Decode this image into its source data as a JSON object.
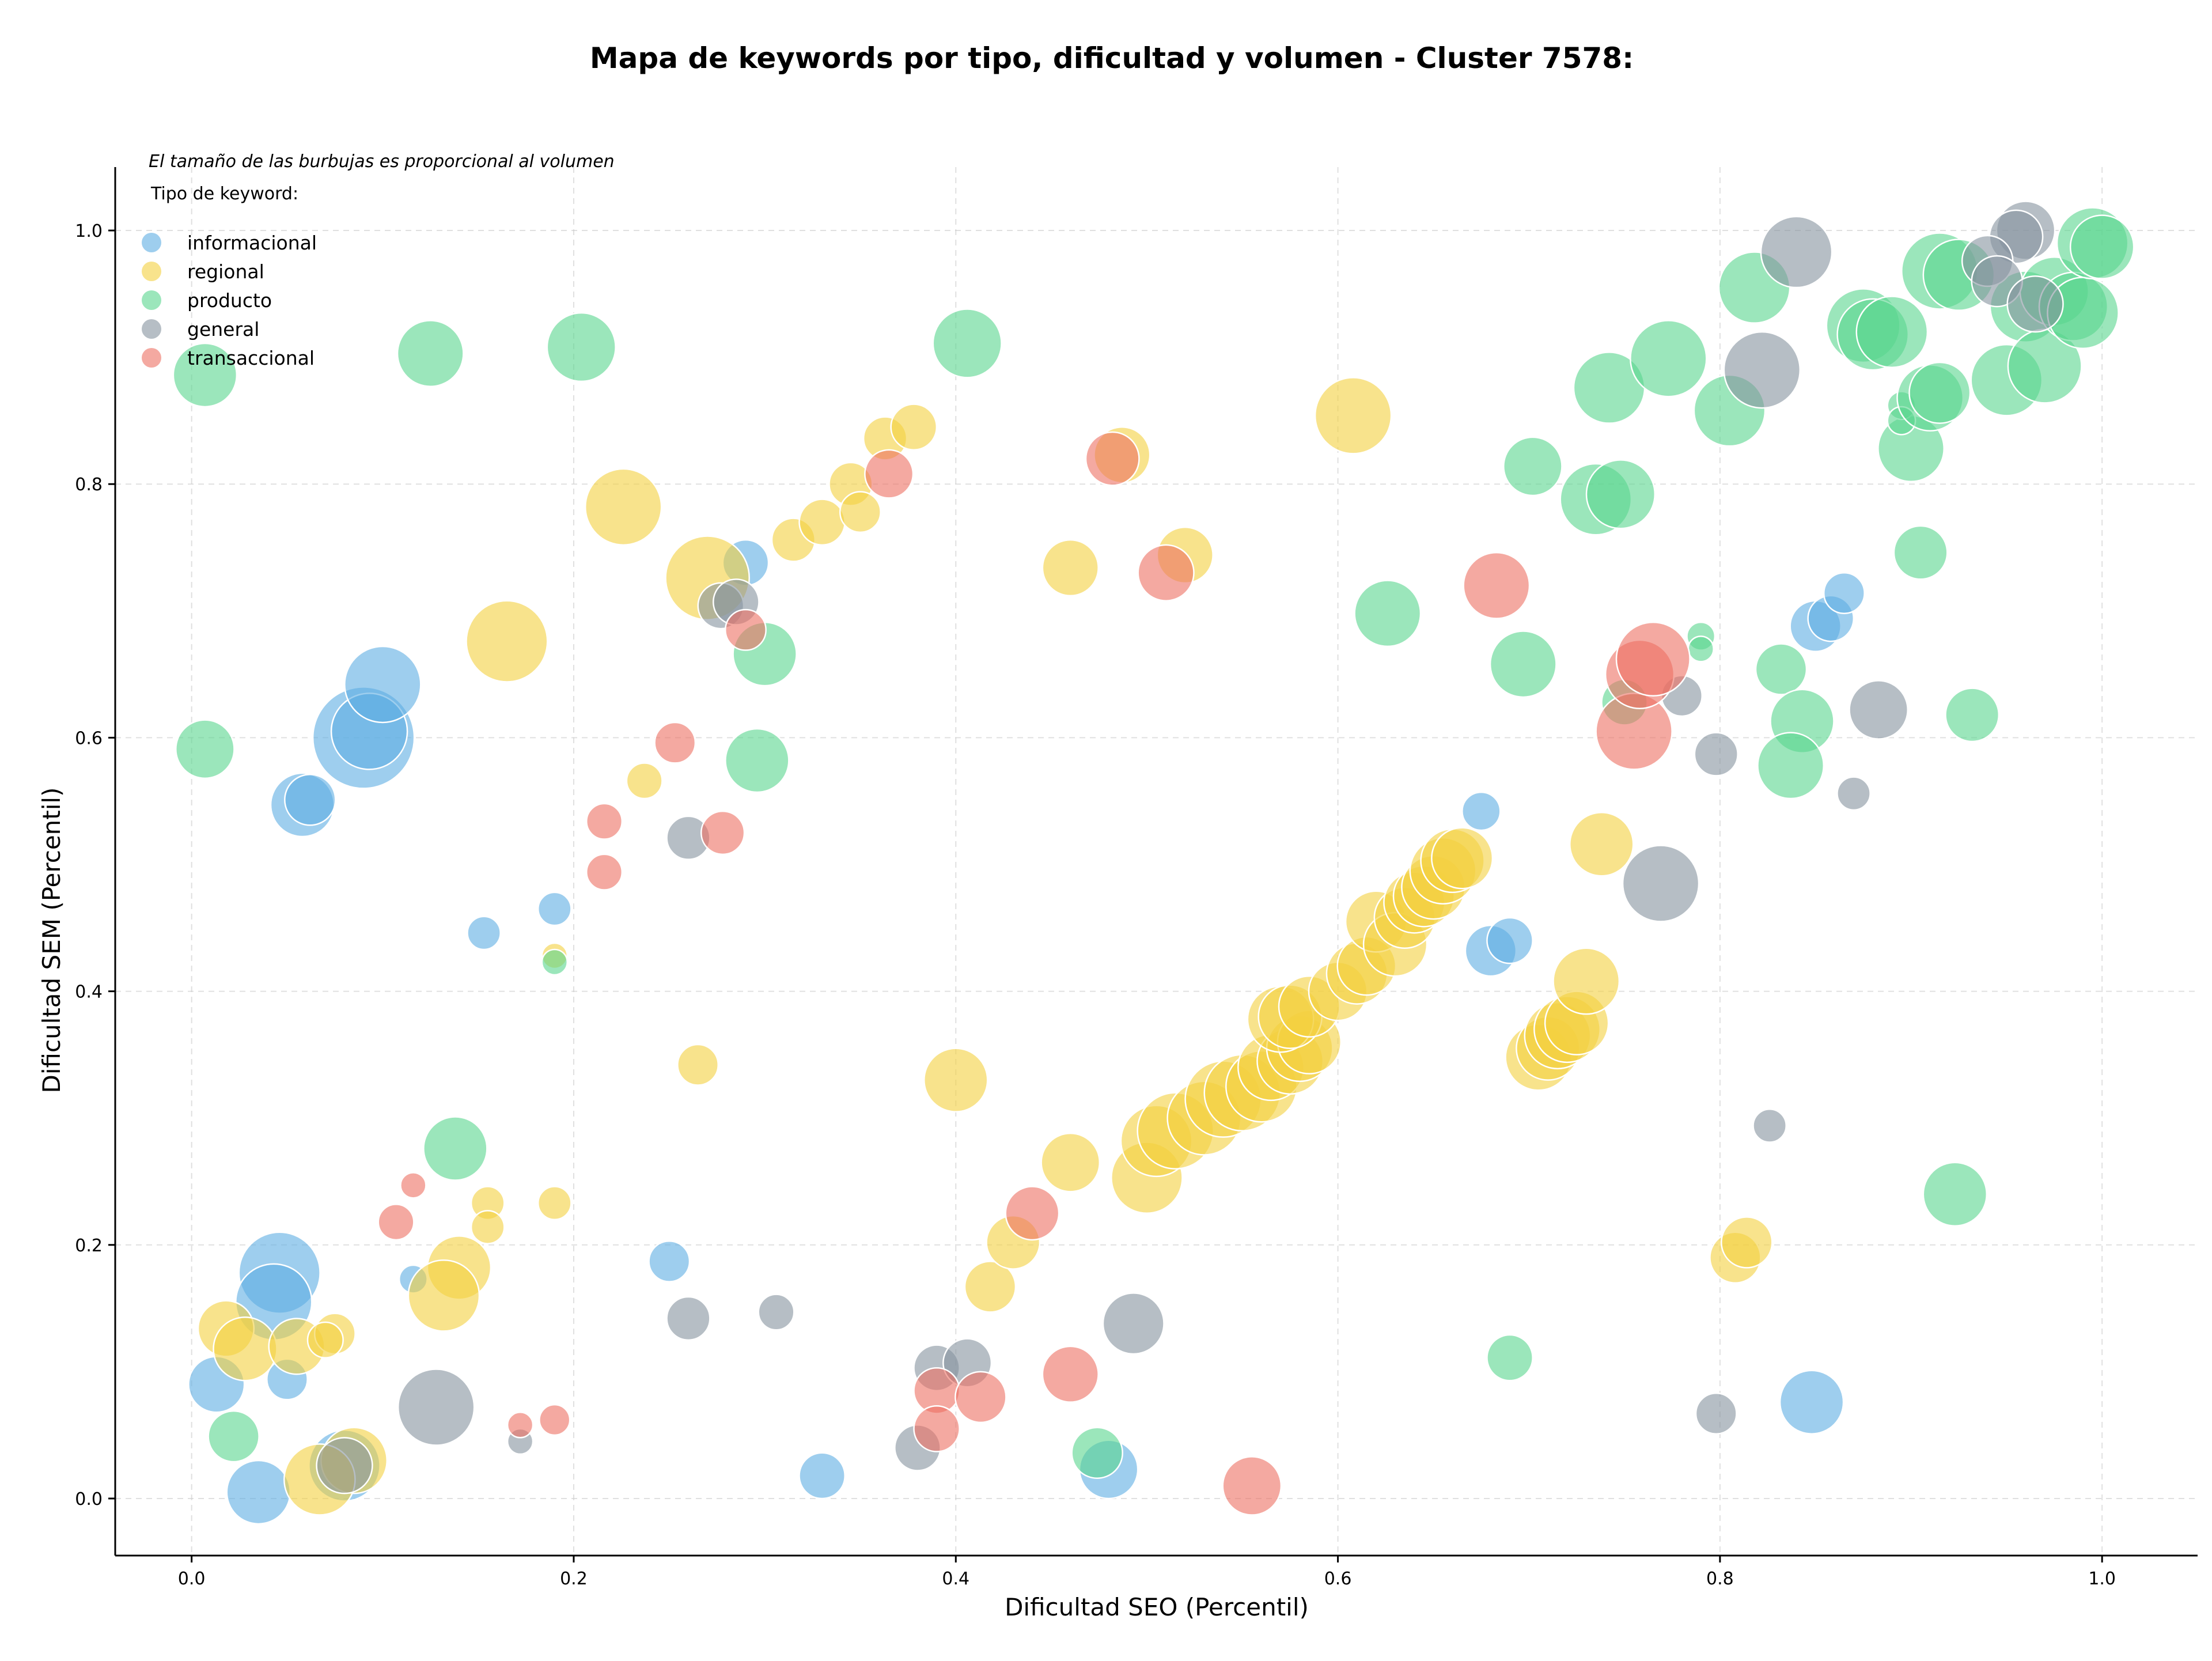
{
  "chart_data": {
    "type": "scatter",
    "title": "Mapa de keywords por tipo, dificultad y volumen - Cluster 7578:",
    "xlabel": "Dificultad SEO (Percentil)",
    "ylabel": "Dificultad SEM (Percentil)",
    "xlim": [
      -0.04,
      1.05
    ],
    "ylim": [
      -0.045,
      1.05
    ],
    "xticks": [
      "0.0",
      "0.2",
      "0.4",
      "0.6",
      "0.8",
      "1.0"
    ],
    "yticks": [
      "0.0",
      "0.2",
      "0.4",
      "0.6",
      "0.8",
      "1.0"
    ],
    "grid": true,
    "annotation": "El tamaño de las burbujas es proporcional al volumen",
    "legend": {
      "title": "Tipo de keyword:",
      "placement": "top-left"
    },
    "series": [
      {
        "name": "informacional",
        "color": "#5DADE2",
        "points": [
          [
            0.09,
            0.6,
            4
          ],
          [
            0.093,
            0.605,
            3
          ],
          [
            0.1,
            0.642,
            3
          ],
          [
            0.058,
            0.547,
            2.5
          ],
          [
            0.062,
            0.551,
            2
          ],
          [
            0.153,
            0.446,
            1.3
          ],
          [
            0.19,
            0.465,
            1.3
          ],
          [
            0.29,
            0.738,
            1.8
          ],
          [
            0.046,
            0.178,
            3.2
          ],
          [
            0.043,
            0.155,
            3
          ],
          [
            0.013,
            0.09,
            2.2
          ],
          [
            0.05,
            0.094,
            1.6
          ],
          [
            0.116,
            0.173,
            1.1
          ],
          [
            0.035,
            0.005,
            2.5
          ],
          [
            0.08,
            0.026,
            2.8
          ],
          [
            0.25,
            0.187,
            1.6
          ],
          [
            0.33,
            0.018,
            1.8
          ],
          [
            0.48,
            0.023,
            2.3
          ],
          [
            0.675,
            0.542,
            1.5
          ],
          [
            0.68,
            0.432,
            2
          ],
          [
            0.69,
            0.44,
            1.8
          ],
          [
            0.85,
            0.688,
            2
          ],
          [
            0.858,
            0.694,
            1.8
          ],
          [
            0.865,
            0.714,
            1.6
          ],
          [
            0.848,
            0.076,
            2.5
          ]
        ]
      },
      {
        "name": "regional",
        "color": "#F4D03F",
        "points": [
          [
            0.226,
            0.782,
            3
          ],
          [
            0.165,
            0.676,
            3.2
          ],
          [
            0.27,
            0.726,
            3.3
          ],
          [
            0.315,
            0.756,
            1.7
          ],
          [
            0.33,
            0.77,
            1.8
          ],
          [
            0.345,
            0.8,
            1.7
          ],
          [
            0.35,
            0.778,
            1.6
          ],
          [
            0.363,
            0.836,
            1.7
          ],
          [
            0.378,
            0.845,
            1.8
          ],
          [
            0.46,
            0.734,
            2.2
          ],
          [
            0.487,
            0.823,
            2.2
          ],
          [
            0.52,
            0.744,
            2.2
          ],
          [
            0.608,
            0.854,
            3
          ],
          [
            0.237,
            0.566,
            1.4
          ],
          [
            0.19,
            0.428,
            1
          ],
          [
            0.265,
            0.342,
            1.6
          ],
          [
            0.4,
            0.33,
            2.5
          ],
          [
            0.155,
            0.233,
            1.3
          ],
          [
            0.155,
            0.214,
            1.3
          ],
          [
            0.19,
            0.233,
            1.3
          ],
          [
            0.14,
            0.182,
            2.5
          ],
          [
            0.132,
            0.16,
            2.8
          ],
          [
            0.018,
            0.134,
            2.2
          ],
          [
            0.028,
            0.118,
            2.5
          ],
          [
            0.055,
            0.12,
            2.2
          ],
          [
            0.075,
            0.13,
            1.6
          ],
          [
            0.07,
            0.125,
            1.4
          ],
          [
            0.085,
            0.03,
            2.6
          ],
          [
            0.067,
            0.015,
            2.8
          ],
          [
            0.418,
            0.167,
            2
          ],
          [
            0.43,
            0.202,
            2.1
          ],
          [
            0.46,
            0.265,
            2.3
          ],
          [
            0.5,
            0.253,
            2.8
          ],
          [
            0.505,
            0.282,
            2.8
          ],
          [
            0.515,
            0.29,
            3
          ],
          [
            0.53,
            0.3,
            2.9
          ],
          [
            0.54,
            0.315,
            3
          ],
          [
            0.55,
            0.32,
            3
          ],
          [
            0.56,
            0.325,
            2.8
          ],
          [
            0.565,
            0.34,
            2.6
          ],
          [
            0.575,
            0.345,
            2.6
          ],
          [
            0.58,
            0.355,
            2.6
          ],
          [
            0.585,
            0.36,
            2.5
          ],
          [
            0.57,
            0.378,
            2.6
          ],
          [
            0.575,
            0.38,
            2.5
          ],
          [
            0.585,
            0.388,
            2.4
          ],
          [
            0.6,
            0.4,
            2.3
          ],
          [
            0.61,
            0.414,
            2.4
          ],
          [
            0.615,
            0.42,
            2.3
          ],
          [
            0.62,
            0.455,
            2.4
          ],
          [
            0.63,
            0.437,
            2.5
          ],
          [
            0.635,
            0.458,
            2.4
          ],
          [
            0.64,
            0.47,
            2.4
          ],
          [
            0.645,
            0.475,
            2.4
          ],
          [
            0.65,
            0.482,
            2.5
          ],
          [
            0.655,
            0.495,
            2.6
          ],
          [
            0.66,
            0.503,
            2.5
          ],
          [
            0.665,
            0.505,
            2.4
          ],
          [
            0.705,
            0.348,
            2.6
          ],
          [
            0.71,
            0.355,
            2.5
          ],
          [
            0.715,
            0.365,
            2.6
          ],
          [
            0.72,
            0.37,
            2.6
          ],
          [
            0.725,
            0.375,
            2.5
          ],
          [
            0.73,
            0.408,
            2.6
          ],
          [
            0.738,
            0.516,
            2.5
          ],
          [
            0.808,
            0.19,
            2
          ],
          [
            0.814,
            0.202,
            2
          ]
        ]
      },
      {
        "name": "producto",
        "color": "#58D68D",
        "points": [
          [
            0.007,
            0.886,
            2.5
          ],
          [
            0.125,
            0.903,
            2.6
          ],
          [
            0.204,
            0.908,
            2.7
          ],
          [
            0.406,
            0.911,
            2.7
          ],
          [
            0.007,
            0.591,
            2.3
          ],
          [
            0.3,
            0.666,
            2.5
          ],
          [
            0.296,
            0.582,
            2.5
          ],
          [
            0.19,
            0.423,
            1
          ],
          [
            0.138,
            0.276,
            2.5
          ],
          [
            0.022,
            0.049,
            2
          ],
          [
            0.474,
            0.036,
            2
          ],
          [
            0.626,
            0.698,
            2.6
          ],
          [
            0.697,
            0.658,
            2.6
          ],
          [
            0.702,
            0.814,
            2.3
          ],
          [
            0.735,
            0.788,
            2.8
          ],
          [
            0.748,
            0.792,
            2.7
          ],
          [
            0.742,
            0.876,
            2.8
          ],
          [
            0.773,
            0.899,
            3
          ],
          [
            0.818,
            0.955,
            2.8
          ],
          [
            0.805,
            0.858,
            2.8
          ],
          [
            0.79,
            0.68,
            1.1
          ],
          [
            0.79,
            0.67,
            1
          ],
          [
            0.832,
            0.654,
            2
          ],
          [
            0.843,
            0.613,
            2.5
          ],
          [
            0.837,
            0.578,
            2.6
          ],
          [
            0.75,
            0.628,
            1.8
          ],
          [
            0.69,
            0.111,
            1.8
          ],
          [
            0.923,
            0.24,
            2.5
          ],
          [
            0.932,
            0.618,
            2.1
          ],
          [
            0.905,
            0.746,
            2.1
          ],
          [
            0.9,
            0.828,
            2.6
          ],
          [
            0.895,
            0.862,
            1.1
          ],
          [
            0.895,
            0.85,
            1.1
          ],
          [
            0.91,
            0.868,
            2.6
          ],
          [
            0.915,
            0.872,
            2.4
          ],
          [
            0.875,
            0.925,
            2.9
          ],
          [
            0.88,
            0.918,
            2.8
          ],
          [
            0.89,
            0.92,
            2.8
          ],
          [
            0.915,
            0.968,
            3
          ],
          [
            0.925,
            0.965,
            2.8
          ],
          [
            0.95,
            0.882,
            2.8
          ],
          [
            0.96,
            0.94,
            2.8
          ],
          [
            0.97,
            0.893,
            2.9
          ],
          [
            0.975,
            0.952,
            2.7
          ],
          [
            0.985,
            0.94,
            2.7
          ],
          [
            0.99,
            0.935,
            2.8
          ],
          [
            0.995,
            0.99,
            2.8
          ],
          [
            1.0,
            0.987,
            2.5
          ]
        ]
      },
      {
        "name": "general",
        "color": "#85929E",
        "points": [
          [
            0.277,
            0.704,
            1.8
          ],
          [
            0.285,
            0.707,
            1.8
          ],
          [
            0.26,
            0.521,
            1.7
          ],
          [
            0.128,
            0.072,
            3
          ],
          [
            0.08,
            0.026,
            2.2
          ],
          [
            0.172,
            0.045,
            1
          ],
          [
            0.26,
            0.142,
            1.7
          ],
          [
            0.306,
            0.147,
            1.4
          ],
          [
            0.38,
            0.04,
            1.8
          ],
          [
            0.39,
            0.103,
            1.8
          ],
          [
            0.406,
            0.107,
            1.9
          ],
          [
            0.493,
            0.138,
            2.4
          ],
          [
            0.769,
            0.485,
            3
          ],
          [
            0.78,
            0.633,
            1.6
          ],
          [
            0.798,
            0.587,
            1.7
          ],
          [
            0.826,
            0.294,
            1.3
          ],
          [
            0.798,
            0.067,
            1.6
          ],
          [
            0.87,
            0.556,
            1.3
          ],
          [
            0.883,
            0.622,
            2.3
          ],
          [
            0.822,
            0.89,
            3
          ],
          [
            0.84,
            0.983,
            2.8
          ],
          [
            0.96,
            1.0,
            2.3
          ],
          [
            0.955,
            0.995,
            2.1
          ],
          [
            0.94,
            0.976,
            2
          ],
          [
            0.945,
            0.96,
            2
          ],
          [
            0.965,
            0.942,
            2.2
          ]
        ]
      },
      {
        "name": "transaccional",
        "color": "#EC7063",
        "points": [
          [
            0.365,
            0.808,
            1.9
          ],
          [
            0.482,
            0.82,
            2.1
          ],
          [
            0.51,
            0.73,
            2.2
          ],
          [
            0.29,
            0.685,
            1.6
          ],
          [
            0.253,
            0.596,
            1.6
          ],
          [
            0.216,
            0.534,
            1.4
          ],
          [
            0.216,
            0.494,
            1.4
          ],
          [
            0.278,
            0.525,
            1.7
          ],
          [
            0.116,
            0.247,
            1
          ],
          [
            0.107,
            0.218,
            1.4
          ],
          [
            0.172,
            0.058,
            1
          ],
          [
            0.19,
            0.062,
            1.2
          ],
          [
            0.39,
            0.085,
            1.8
          ],
          [
            0.39,
            0.055,
            1.8
          ],
          [
            0.413,
            0.08,
            2
          ],
          [
            0.46,
            0.098,
            2.2
          ],
          [
            0.44,
            0.225,
            2.1
          ],
          [
            0.555,
            0.01,
            2.3
          ],
          [
            0.683,
            0.72,
            2.6
          ],
          [
            0.755,
            0.605,
            3
          ],
          [
            0.758,
            0.65,
            2.7
          ],
          [
            0.765,
            0.662,
            2.9
          ]
        ]
      }
    ]
  }
}
